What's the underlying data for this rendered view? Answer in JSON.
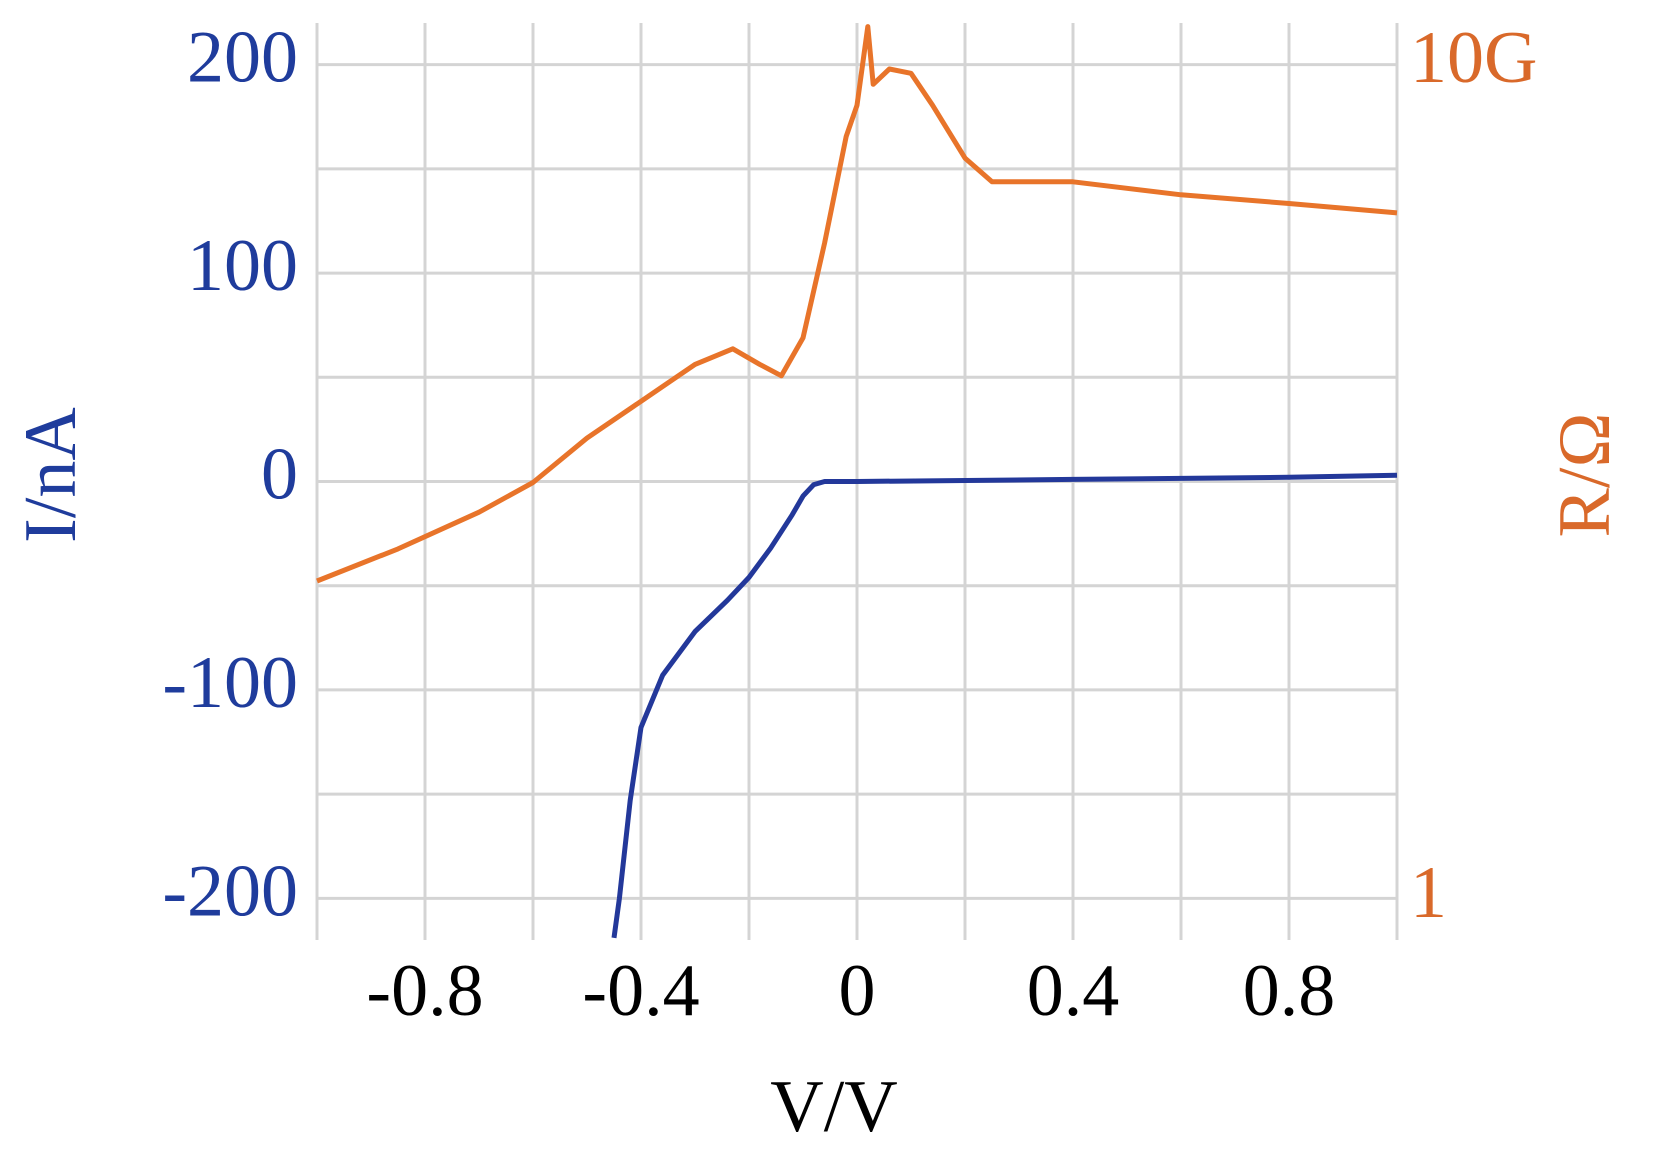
{
  "chart_data": {
    "type": "line",
    "x_label": "V/V",
    "y_label": "I/nA",
    "y2_label": "R/Ω",
    "xlim": [
      -1.0,
      1.0
    ],
    "xticks": [
      -0.8,
      -0.4,
      0,
      0.4,
      0.8
    ],
    "xgrid": [
      -1.0,
      -0.8,
      -0.6,
      -0.4,
      -0.2,
      0,
      0.2,
      0.4,
      0.6,
      0.8,
      1.0
    ],
    "ylim": [
      -220,
      220
    ],
    "yticks": [
      -200,
      -100,
      0,
      100,
      200
    ],
    "ygrid": [
      -200,
      -150,
      -100,
      -50,
      0,
      50,
      100,
      150,
      200
    ],
    "y2lim": [
      0.33,
      32000000000
    ],
    "y2_log": true,
    "y2ticks": [
      1,
      {
        "value": 10000000000,
        "label": "10G"
      }
    ],
    "grid": true,
    "y_color": "#1f3c9c",
    "y2_color": "#d9692a",
    "series": [
      {
        "name": "I",
        "color": "#23389a",
        "axis": "y",
        "x": [
          -0.45,
          -0.44,
          -0.42,
          -0.4,
          -0.36,
          -0.3,
          -0.24,
          -0.2,
          -0.16,
          -0.12,
          -0.1,
          -0.08,
          -0.06,
          0,
          0.4,
          0.8,
          1.0
        ],
        "values": [
          -219,
          -200,
          -153,
          -118,
          -93,
          -72,
          -57,
          -46,
          -32,
          -16,
          -7,
          -1.5,
          0,
          0,
          1,
          2,
          3
        ]
      },
      {
        "name": "R",
        "color": "#e8742a",
        "axis": "y2",
        "x": [
          -1.0,
          -0.85,
          -0.7,
          -0.6,
          -0.5,
          -0.4,
          -0.3,
          -0.23,
          -0.18,
          -0.14,
          -0.1,
          -0.06,
          -0.02,
          0,
          0.02,
          0.03,
          0.06,
          0.1,
          0.14,
          0.2,
          0.25,
          0.4,
          0.6,
          0.8,
          1.0
        ],
        "values": [
          6600,
          16000,
          44000,
          100000,
          340000,
          940000,
          2600000,
          4000000,
          2600000,
          1900000,
          5400000,
          74000000,
          1400000000,
          3300000000,
          29000000000,
          5900000000,
          9000000000,
          8000000000,
          3300000000,
          770000000,
          400000000,
          400000000,
          280000000,
          220000000,
          170000000
        ]
      }
    ]
  }
}
